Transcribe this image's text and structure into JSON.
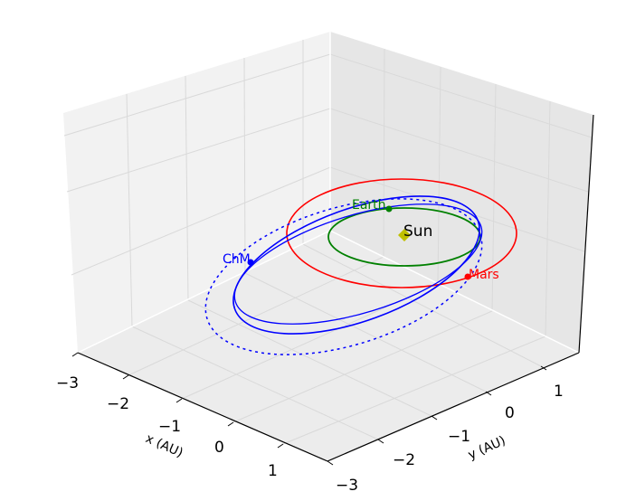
{
  "chart_data": {
    "type": "line",
    "projection": "3d",
    "xlabel": "x (AU)",
    "ylabel": "y (AU)",
    "zlabel": "",
    "xlim": [
      -3,
      1.5
    ],
    "ylim": [
      -3,
      1.5
    ],
    "xticks": [
      "−3",
      "−2",
      "−1",
      "0",
      "1"
    ],
    "yticks": [
      "−3",
      "−2",
      "−1",
      "0",
      "1"
    ],
    "grid": true,
    "colors": {
      "earth": "#008000",
      "mars": "#ff0000",
      "chm": "#0000ff",
      "sun": "#bfbf00"
    },
    "series": [
      {
        "name": "Earth",
        "style": "solid",
        "color": "#008000",
        "orbit": {
          "semi_major": 1.0,
          "ecc": 0.017
        },
        "marker": "dot"
      },
      {
        "name": "Mars",
        "style": "solid",
        "color": "#ff0000",
        "orbit": {
          "semi_major": 1.52,
          "ecc": 0.093
        },
        "marker": "dot"
      },
      {
        "name": "ChM",
        "style": "solid",
        "color": "#0000ff",
        "orbit": "inner transfer ellipse",
        "marker": "dot"
      },
      {
        "name": "",
        "style": "solid",
        "color": "#0000ff",
        "orbit": "second transfer ellipse",
        "marker": ""
      },
      {
        "name": "",
        "style": "dotted",
        "color": "#0000ff",
        "orbit": "outer dashed ellipse",
        "marker": ""
      }
    ],
    "annotations": [
      {
        "text": "Sun",
        "color": "#000000"
      },
      {
        "text": "Earth",
        "color": "#008000"
      },
      {
        "text": "Mars",
        "color": "#ff0000"
      },
      {
        "text": "ChM",
        "color": "#0000ff"
      }
    ]
  }
}
